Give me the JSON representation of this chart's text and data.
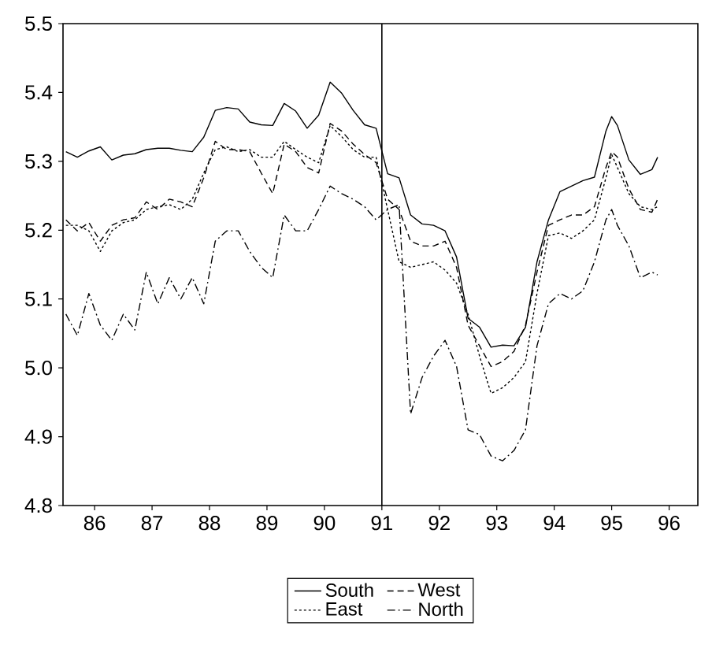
{
  "chart_data": {
    "type": "line",
    "x": [
      85.5,
      85.7,
      85.9,
      86.1,
      86.3,
      86.5,
      86.7,
      86.9,
      87.1,
      87.3,
      87.5,
      87.7,
      87.9,
      88.1,
      88.3,
      88.5,
      88.7,
      88.9,
      89.1,
      89.3,
      89.5,
      89.7,
      89.9,
      90.1,
      90.3,
      90.5,
      90.7,
      90.9,
      91.1,
      91.3,
      91.5,
      91.7,
      91.9,
      92.1,
      92.3,
      92.5,
      92.7,
      92.9,
      93.1,
      93.3,
      93.5,
      93.7,
      93.9,
      94.1,
      94.3,
      94.5,
      94.7,
      94.9,
      95.0,
      95.1,
      95.3,
      95.5,
      95.7,
      95.8
    ],
    "series": [
      {
        "name": "South",
        "color": "#000000",
        "line_style": "solid",
        "values": [
          5.314,
          5.306,
          5.315,
          5.321,
          5.302,
          5.309,
          5.311,
          5.317,
          5.319,
          5.319,
          5.316,
          5.314,
          5.335,
          5.374,
          5.378,
          5.376,
          5.357,
          5.353,
          5.352,
          5.384,
          5.373,
          5.348,
          5.367,
          5.415,
          5.399,
          5.374,
          5.353,
          5.348,
          5.282,
          5.276,
          5.222,
          5.209,
          5.207,
          5.199,
          5.161,
          5.072,
          5.059,
          5.03,
          5.033,
          5.032,
          5.059,
          5.154,
          5.215,
          5.256,
          5.264,
          5.272,
          5.277,
          5.344,
          5.365,
          5.352,
          5.302,
          5.281,
          5.288,
          5.306
        ]
      },
      {
        "name": "West",
        "color": "#000000",
        "line_style": "dashed",
        "values": [
          5.215,
          5.199,
          5.211,
          5.184,
          5.207,
          5.215,
          5.218,
          5.241,
          5.23,
          5.245,
          5.241,
          5.234,
          5.276,
          5.329,
          5.317,
          5.317,
          5.314,
          5.283,
          5.253,
          5.325,
          5.314,
          5.291,
          5.283,
          5.355,
          5.344,
          5.325,
          5.31,
          5.298,
          5.245,
          5.23,
          5.184,
          5.177,
          5.177,
          5.184,
          5.146,
          5.062,
          5.032,
          5.002,
          5.009,
          5.024,
          5.062,
          5.139,
          5.207,
          5.215,
          5.222,
          5.222,
          5.234,
          5.291,
          5.314,
          5.306,
          5.26,
          5.23,
          5.226,
          5.245
        ]
      },
      {
        "name": "East",
        "color": "#000000",
        "line_style": "dotted",
        "values": [
          5.207,
          5.207,
          5.199,
          5.169,
          5.199,
          5.211,
          5.215,
          5.23,
          5.234,
          5.237,
          5.23,
          5.245,
          5.283,
          5.317,
          5.321,
          5.314,
          5.317,
          5.306,
          5.306,
          5.329,
          5.317,
          5.306,
          5.298,
          5.352,
          5.336,
          5.317,
          5.306,
          5.306,
          5.23,
          5.154,
          5.146,
          5.15,
          5.154,
          5.142,
          5.123,
          5.078,
          5.017,
          4.963,
          4.971,
          4.986,
          5.009,
          5.108,
          5.192,
          5.196,
          5.188,
          5.199,
          5.215,
          5.276,
          5.31,
          5.291,
          5.253,
          5.234,
          5.23,
          5.234
        ]
      },
      {
        "name": "North",
        "color": "#000000",
        "line_style": "dashdot",
        "values": [
          5.078,
          5.047,
          5.108,
          5.062,
          5.04,
          5.078,
          5.055,
          5.139,
          5.093,
          5.131,
          5.1,
          5.131,
          5.093,
          5.184,
          5.199,
          5.199,
          5.169,
          5.146,
          5.131,
          5.222,
          5.199,
          5.199,
          5.23,
          5.264,
          5.253,
          5.245,
          5.234,
          5.215,
          5.23,
          5.237,
          4.933,
          4.986,
          5.017,
          5.04,
          5.002,
          4.91,
          4.903,
          4.872,
          4.865,
          4.88,
          4.91,
          5.032,
          5.093,
          5.108,
          5.1,
          5.112,
          5.154,
          5.215,
          5.23,
          5.207,
          5.177,
          5.131,
          5.139,
          5.135
        ]
      }
    ],
    "xlim": [
      85.45,
      96.5
    ],
    "xticks": [
      86,
      87,
      88,
      89,
      90,
      91,
      92,
      93,
      94,
      95,
      96
    ],
    "ylim": [
      4.8,
      5.5
    ],
    "yticks": [
      4.8,
      4.9,
      {
        "value": 5.0,
        "label": "5.0"
      },
      5.1,
      5.2,
      5.3,
      5.4,
      5.5
    ],
    "ref_lines": [
      {
        "axis": "x",
        "value": 91
      }
    ],
    "legend": "bottom"
  }
}
